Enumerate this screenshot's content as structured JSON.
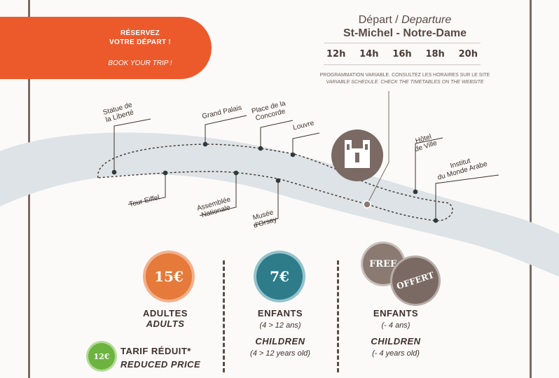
{
  "cta": {
    "line1": "RÉSERVEZ",
    "line2": "VOTRE DÉPART !",
    "line3": "BOOK YOUR TRIP !"
  },
  "departure": {
    "title_fr": "Départ /",
    "title_en": "Departure",
    "stop": "St-Michel - Notre-Dame",
    "times": [
      "12h",
      "14h",
      "16h",
      "18h",
      "20h"
    ],
    "note_fr": "PROGRAMMATION VARIABLE. CONSULTEZ LES HORAIRES SUR LE SITE",
    "note_en": "VARIABLE SCHEDULE. CHECK THE TIMETABLES ON THE WEBSITE"
  },
  "stops": {
    "statue": "Statue de\nla Liberté",
    "grand_palais": "Grand Palais",
    "concorde": "Place de la\nConcorde",
    "louvre": "Louvre",
    "hotel": "Hôtel\nde Ville",
    "institut": "Institut\ndu Monde Arabe",
    "eiffel": "Tour Eiffel",
    "assemblee": "Assemblée\nNationale",
    "orsay": "Musée\nd'Orsay"
  },
  "prices": {
    "adult": {
      "badge": "15€",
      "fr": "ADULTES",
      "en": "ADULTS"
    },
    "child": {
      "badge": "7€",
      "fr": "ENFANTS",
      "fr_age": "(4 > 12 ans)",
      "en": "CHILDREN",
      "en_age": "(4 > 12 years old)"
    },
    "infant": {
      "badge1": "FREE",
      "badge2": "OFFERT",
      "fr": "ENFANTS",
      "fr_age": "(- 4 ans)",
      "en": "CHILDREN",
      "en_age": "(- 4 years old)"
    },
    "reduced": {
      "badge": "12€",
      "fr": "TARIF RÉDUIT*",
      "en": "REDUCED PRICE"
    }
  },
  "colors": {
    "orange": "#ec5a2c",
    "teal": "#2e7c8a",
    "brown": "#7a6a63",
    "green": "#6cb33f",
    "river": "#dde3e6"
  }
}
